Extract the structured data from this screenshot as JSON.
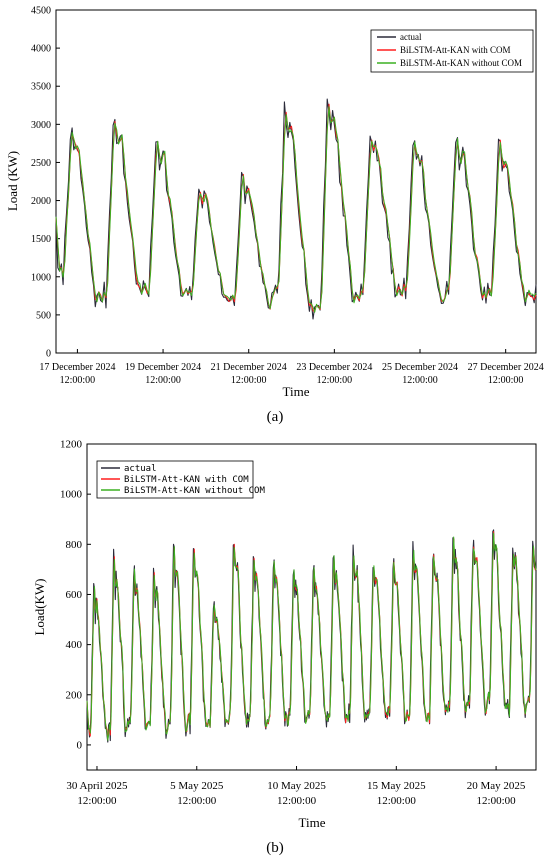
{
  "chart_data": [
    {
      "type": "line",
      "panel_label": "(a)",
      "xlabel": "Time",
      "ylabel": "Load (KW)",
      "ylim": [
        0,
        4500
      ],
      "yticks": [
        0,
        500,
        1000,
        1500,
        2000,
        2500,
        3000,
        3500,
        4000,
        4500
      ],
      "xlim": [
        0,
        269
      ],
      "xticks": [
        {
          "x": 12,
          "line1": "17 December 2024",
          "line2": "12:00:00"
        },
        {
          "x": 60,
          "line1": "19 December 2024",
          "line2": "12:00:00"
        },
        {
          "x": 108,
          "line1": "21 December 2024",
          "line2": "12:00:00"
        },
        {
          "x": 156,
          "line1": "23 December 2024",
          "line2": "12:00:00"
        },
        {
          "x": 204,
          "line1": "25 December 2024",
          "line2": "12:00:00"
        },
        {
          "x": 252,
          "line1": "27 December 2024",
          "line2": "12:00:00"
        }
      ],
      "legend_position": "top-right",
      "series": [
        {
          "name": "actual",
          "color": "#2b2b3a"
        },
        {
          "name": "BiLSTM-Att-KAN with COM",
          "color": "#ff1f1f"
        },
        {
          "name": "BiLSTM-Att-KAN without COM",
          "color": "#3cb022"
        }
      ],
      "daily_peaks_kw": [
        2900,
        3100,
        2850,
        2200,
        2300,
        3150,
        3350,
        2900,
        2800,
        2850,
        2750
      ],
      "daily_troughs_kw": [
        1000,
        700,
        800,
        750,
        700,
        650,
        550,
        750,
        800,
        750,
        750,
        700
      ],
      "first_value_kw": 1800,
      "last_value_kw": 900
    },
    {
      "type": "line",
      "panel_label": "(b)",
      "xlabel": "Time",
      "ylabel": "Load(KW)",
      "ylim": [
        -100,
        1200
      ],
      "yticks": [
        0,
        200,
        400,
        600,
        800,
        1000,
        1200
      ],
      "xlim": [
        0,
        540
      ],
      "xticks": [
        {
          "x": 12,
          "line1": "30 April 2025",
          "line2": "12:00:00"
        },
        {
          "x": 132,
          "line1": "5 May 2025",
          "line2": "12:00:00"
        },
        {
          "x": 252,
          "line1": "10 May 2025",
          "line2": "12:00:00"
        },
        {
          "x": 372,
          "line1": "15 May 2025",
          "line2": "12:00:00"
        },
        {
          "x": 492,
          "line1": "20 May 2025",
          "line2": "12:00:00"
        }
      ],
      "legend_position": "top-left",
      "series": [
        {
          "name": "actual",
          "color": "#2b2b3a"
        },
        {
          "name": "BiLSTM-Att-KAN with COM",
          "color": "#ff1f1f"
        },
        {
          "name": "BiLSTM-Att-KAN without COM",
          "color": "#3cb022"
        }
      ],
      "daily_peaks_kw": [
        620,
        740,
        700,
        680,
        780,
        800,
        560,
        800,
        740,
        720,
        690,
        700,
        740,
        780,
        720,
        730,
        780,
        760,
        820,
        800,
        860,
        790
      ],
      "daily_troughs_kw": [
        40,
        40,
        60,
        70,
        60,
        60,
        80,
        100,
        90,
        100,
        100,
        110,
        100,
        110,
        100,
        120,
        110,
        120,
        130,
        140,
        140,
        140
      ],
      "first_value_kw": 180,
      "last_value_kw": 700
    }
  ]
}
